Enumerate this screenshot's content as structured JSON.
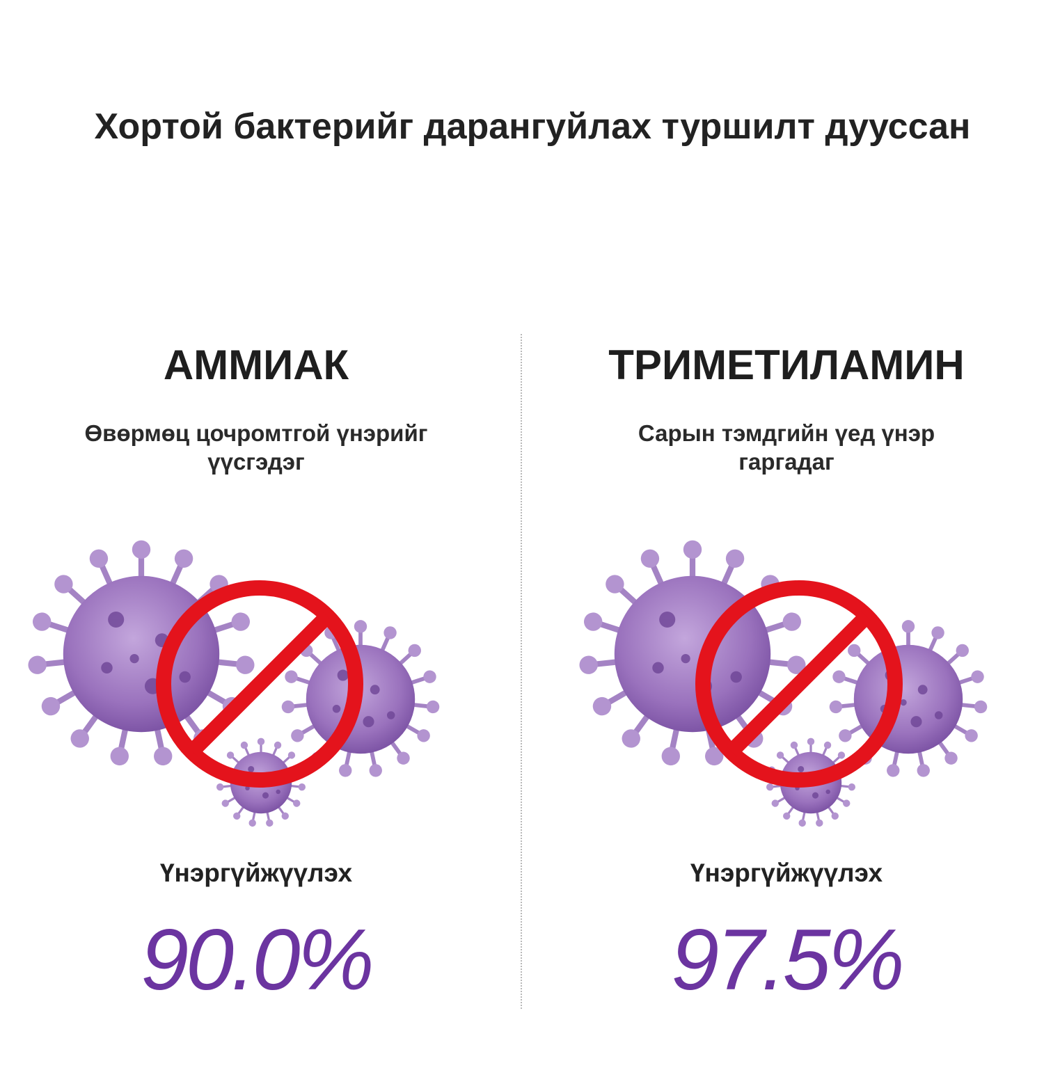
{
  "title": "Хортой бактерийг дарангуйлах туршилт дууссан",
  "colors": {
    "accent_purple": "#6b34a0",
    "virus_purple": "#9a72bd",
    "prohibition_red": "#e4131c"
  },
  "items": [
    {
      "name": "АММИАК",
      "description": "Өвөрмөц цочромтгой үнэрийг үүсгэдэг",
      "label": "Үнэргүйжүүлэх",
      "value": "90.0%",
      "icon": "no-virus-icon"
    },
    {
      "name": "ТРИМЕТИЛАМИН",
      "description": "Сарын тэмдгийн үед үнэр гаргадаг",
      "label": "Үнэргүйжүүлэх",
      "value": "97.5%",
      "icon": "no-virus-icon"
    }
  ]
}
